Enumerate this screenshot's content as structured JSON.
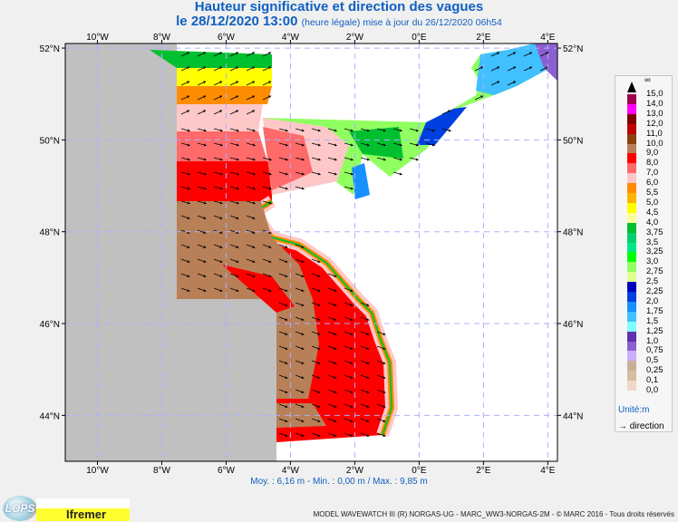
{
  "header": {
    "title": "Hauteur significative et direction des vagues",
    "date": "le 28/12/2020 13:00",
    "note": "(heure légale) mise à jour du 26/12/2020 06h54"
  },
  "map": {
    "lon_ticks": [
      "10°W",
      "8°W",
      "6°W",
      "4°W",
      "2°W",
      "0°E",
      "2°E",
      "4°E"
    ],
    "lat_ticks": [
      "52°N",
      "50°N",
      "48°N",
      "46°N",
      "44°N"
    ],
    "extent": {
      "lon": [
        -11,
        4.3
      ],
      "lat": [
        43,
        52.1
      ]
    },
    "grid": true,
    "arrow_direction": "east-southeast"
  },
  "stats": "Moy. : 6,16 m   -   Min. : 0,00 m / Max. : 9,85 m",
  "legend": {
    "top_label": "∞",
    "labels": [
      "15,0",
      "14,0",
      "13,0",
      "12,0",
      "11,0",
      "10,0",
      "9,0",
      "8,0",
      "7,0",
      "6,0",
      "5,5",
      "5,0",
      "4,5",
      "4,0",
      "3,75",
      "3,5",
      "3,25",
      "3,0",
      "2,75",
      "2,5",
      "2,25",
      "2,0",
      "1,75",
      "1,5",
      "1,25",
      "1,0",
      "0,75",
      "0,5",
      "0,25",
      "0,1",
      "0,0"
    ],
    "colors": [
      "#a00050",
      "#ff00ff",
      "#800000",
      "#c00000",
      "#8b4010",
      "#b88058",
      "#ff0000",
      "#ff6a6a",
      "#ffc8c8",
      "#ff8c00",
      "#ffb400",
      "#ffff00",
      "#ffff99",
      "#00c030",
      "#00d070",
      "#00e88a",
      "#00ff00",
      "#90ff60",
      "#e0ff90",
      "#0000c0",
      "#0040e0",
      "#1890ff",
      "#40c0ff",
      "#80ffff",
      "#6030b0",
      "#8c60d0",
      "#c8b0ff",
      "#c8b098",
      "#d8bca0",
      "#f0d8c8"
    ],
    "unit": "Unité:m",
    "direction_label": "direction"
  },
  "footer": {
    "lops_logo": "LOPS",
    "ifremer_logo": "Ifremer",
    "credit": "MODEL WAVEWATCH III (R) NORGAS-UG - MARC_WW3-NORGAS-2M - © MARC 2016 - Tous droits réservés"
  }
}
